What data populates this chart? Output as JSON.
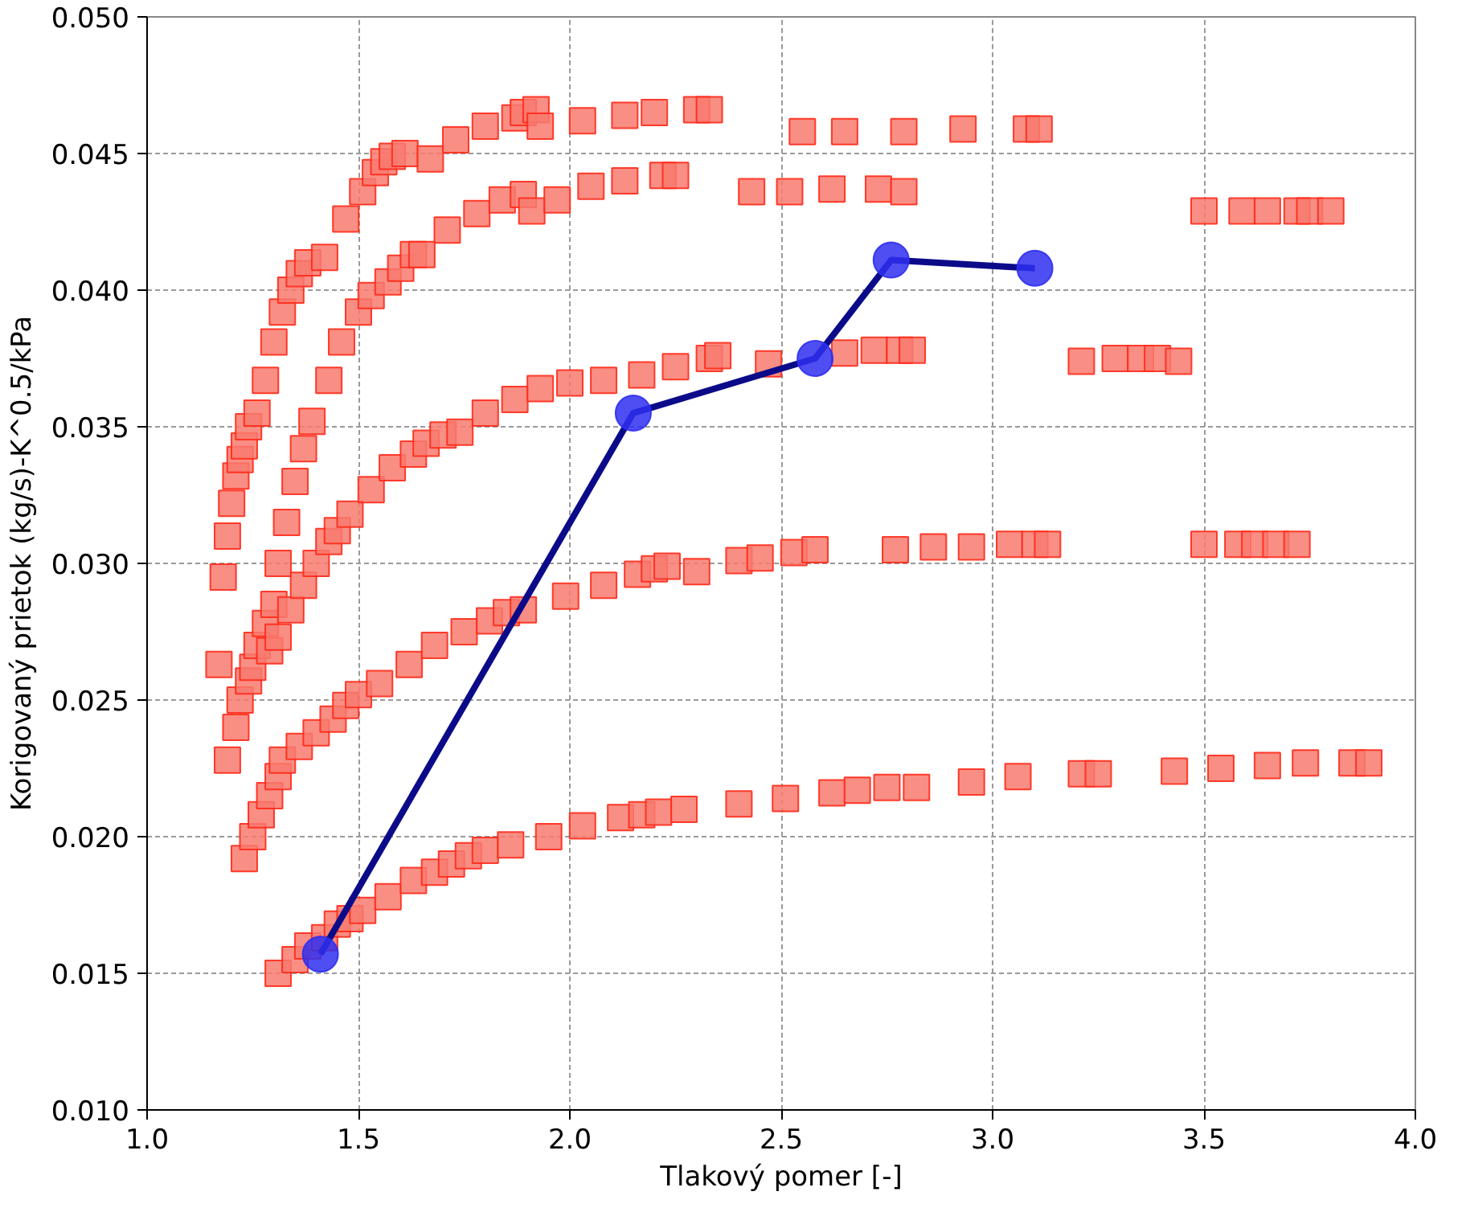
{
  "chart_data": {
    "type": "scatter",
    "xlabel": "Tlakový pomer [-]",
    "ylabel": "Korigovaný prietok (kg/s)-K^0.5/kPa",
    "xlim": [
      1.0,
      4.0
    ],
    "ylim": [
      0.01,
      0.05
    ],
    "grid": true,
    "xticks": [
      {
        "value": 1.0,
        "label": "1.0"
      },
      {
        "value": 1.5,
        "label": "1.5"
      },
      {
        "value": 2.0,
        "label": "2.0"
      },
      {
        "value": 2.5,
        "label": "2.5"
      },
      {
        "value": 3.0,
        "label": "3.0"
      },
      {
        "value": 3.5,
        "label": "3.5"
      },
      {
        "value": 4.0,
        "label": "4.0"
      }
    ],
    "yticks": [
      {
        "value": 0.01,
        "label": "0.010"
      },
      {
        "value": 0.015,
        "label": "0.015"
      },
      {
        "value": 0.02,
        "label": "0.020"
      },
      {
        "value": 0.025,
        "label": "0.025"
      },
      {
        "value": 0.03,
        "label": "0.030"
      },
      {
        "value": 0.035,
        "label": "0.035"
      },
      {
        "value": 0.04,
        "label": "0.040"
      },
      {
        "value": 0.045,
        "label": "0.045"
      },
      {
        "value": 0.05,
        "label": "0.050"
      }
    ],
    "series": [
      {
        "marker": "square",
        "color": "#f87a6e",
        "x": [
          1.17,
          1.18,
          1.19,
          1.2,
          1.21,
          1.22,
          1.23,
          1.24,
          1.26,
          1.28,
          1.3,
          1.32,
          1.34,
          1.36,
          1.38,
          1.42,
          1.47,
          1.51,
          1.54,
          1.56,
          1.58,
          1.61,
          1.67,
          1.73,
          1.8,
          1.87,
          1.89,
          1.92,
          1.93,
          2.03,
          2.13,
          2.2,
          2.3,
          2.33,
          2.55,
          2.65,
          2.79,
          2.93,
          3.08,
          3.11,
          1.19,
          1.21,
          1.22,
          1.24,
          1.25,
          1.26,
          1.28,
          1.3,
          1.31,
          1.33,
          1.35,
          1.37,
          1.39,
          1.43,
          1.46,
          1.5,
          1.53,
          1.57,
          1.6,
          1.63,
          1.65,
          1.71,
          1.78,
          1.84,
          1.89,
          1.91,
          1.97,
          2.05,
          2.13,
          2.22,
          2.25,
          2.43,
          2.52,
          2.62,
          2.73,
          2.79,
          3.5,
          3.59,
          3.65,
          3.72,
          3.75,
          3.8,
          1.29,
          1.31,
          1.34,
          1.37,
          1.4,
          1.43,
          1.45,
          1.48,
          1.53,
          1.58,
          1.63,
          1.66,
          1.7,
          1.74,
          1.8,
          1.87,
          1.93,
          2.0,
          2.08,
          2.17,
          2.25,
          2.33,
          2.35,
          2.47,
          2.57,
          2.65,
          2.72,
          2.78,
          2.81,
          3.21,
          3.29,
          3.35,
          3.39,
          3.44,
          1.23,
          1.25,
          1.27,
          1.29,
          1.31,
          1.32,
          1.36,
          1.4,
          1.44,
          1.47,
          1.5,
          1.55,
          1.62,
          1.68,
          1.75,
          1.81,
          1.85,
          1.89,
          1.99,
          2.08,
          2.16,
          2.2,
          2.23,
          2.3,
          2.4,
          2.45,
          2.53,
          2.58,
          2.77,
          2.86,
          2.95,
          3.04,
          3.1,
          3.13,
          3.5,
          3.58,
          3.62,
          3.67,
          3.72,
          1.31,
          1.35,
          1.38,
          1.42,
          1.45,
          1.48,
          1.51,
          1.57,
          1.63,
          1.68,
          1.72,
          1.76,
          1.8,
          1.86,
          1.95,
          2.03,
          2.12,
          2.17,
          2.21,
          2.27,
          2.4,
          2.51,
          2.62,
          2.68,
          2.75,
          2.82,
          2.95,
          3.06,
          3.21,
          3.25,
          3.43,
          3.54,
          3.65,
          3.74,
          3.85,
          3.89
        ],
        "values": [
          0.0263,
          0.0295,
          0.031,
          0.0322,
          0.0332,
          0.0338,
          0.0343,
          0.035,
          0.0355,
          0.0367,
          0.0381,
          0.0392,
          0.04,
          0.0406,
          0.041,
          0.0412,
          0.0426,
          0.0436,
          0.0443,
          0.0447,
          0.0449,
          0.045,
          0.0448,
          0.0455,
          0.046,
          0.0463,
          0.0465,
          0.0466,
          0.046,
          0.0462,
          0.0464,
          0.0465,
          0.0466,
          0.0466,
          0.0458,
          0.0458,
          0.0458,
          0.0459,
          0.0459,
          0.0459,
          0.0228,
          0.024,
          0.025,
          0.0257,
          0.0262,
          0.027,
          0.0278,
          0.0285,
          0.03,
          0.0315,
          0.033,
          0.0342,
          0.0352,
          0.0367,
          0.0381,
          0.0392,
          0.0398,
          0.0403,
          0.0408,
          0.0413,
          0.0413,
          0.0422,
          0.0428,
          0.0433,
          0.0435,
          0.0429,
          0.0433,
          0.0438,
          0.044,
          0.0442,
          0.0442,
          0.0436,
          0.0436,
          0.0437,
          0.0437,
          0.0436,
          0.0429,
          0.0429,
          0.0429,
          0.0429,
          0.0429,
          0.0429,
          0.0268,
          0.0273,
          0.0283,
          0.0292,
          0.03,
          0.0308,
          0.0312,
          0.0318,
          0.0327,
          0.0335,
          0.034,
          0.0344,
          0.0347,
          0.0348,
          0.0355,
          0.036,
          0.0364,
          0.0366,
          0.0367,
          0.0369,
          0.0372,
          0.0375,
          0.0376,
          0.0373,
          null,
          0.0377,
          0.0378,
          0.0378,
          0.0378,
          0.0374,
          0.0375,
          0.0375,
          0.0375,
          0.0374,
          0.0192,
          0.02,
          0.0208,
          0.0215,
          0.0222,
          0.0228,
          0.0233,
          0.0238,
          0.0243,
          0.0248,
          0.0252,
          0.0256,
          0.0263,
          0.027,
          0.0275,
          0.0279,
          0.0282,
          0.0283,
          0.0288,
          0.0292,
          0.0296,
          0.0298,
          0.0299,
          0.0297,
          0.0301,
          0.0302,
          0.0304,
          0.0305,
          0.0305,
          0.0306,
          0.0306,
          0.0307,
          0.0307,
          0.0307,
          0.0307,
          0.0307,
          0.0307,
          0.0307,
          0.0307,
          0.015,
          0.0155,
          0.016,
          0.0163,
          0.0168,
          0.017,
          0.0173,
          0.0178,
          0.0184,
          0.0187,
          0.019,
          0.0193,
          0.0195,
          0.0197,
          0.02,
          0.0204,
          0.0207,
          0.0208,
          0.0209,
          0.021,
          0.0212,
          0.0214,
          0.0216,
          0.0217,
          0.0218,
          0.0218,
          0.022,
          0.0222,
          0.0223,
          0.0223,
          0.0224,
          0.0225,
          0.0226,
          0.0227,
          0.0227,
          0.0227
        ]
      },
      {
        "type": "line",
        "marker": "circle",
        "color": "#2f2ff0",
        "x": [
          1.41,
          2.15,
          2.58,
          2.76,
          3.1
        ],
        "values": [
          0.0157,
          0.0355,
          0.0375,
          0.0411,
          0.0408
        ]
      }
    ]
  }
}
